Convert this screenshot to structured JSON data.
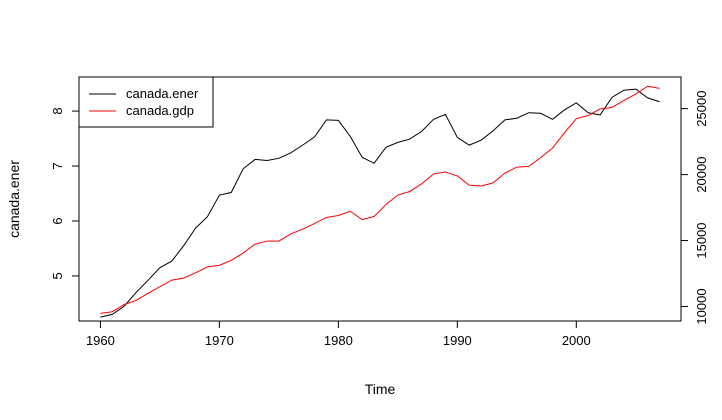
{
  "chart_data": {
    "type": "line",
    "xlabel": "Time",
    "ylabel": "canada.ener",
    "xlim": [
      1958.2,
      2008.8
    ],
    "x_ticks": [
      1960,
      1970,
      1980,
      1990,
      2000
    ],
    "y_left": {
      "lim": [
        4.18,
        8.62
      ],
      "ticks": [
        5,
        6,
        7,
        8
      ]
    },
    "y_right": {
      "lim": [
        8900,
        27400
      ],
      "ticks": [
        10000,
        15000,
        20000,
        25000
      ]
    },
    "legend": {
      "position": "top-left",
      "entries": [
        "canada.ener",
        "canada.gdp"
      ]
    },
    "series": [
      {
        "name": "canada.ener",
        "axis": "left",
        "color": "#000000",
        "x": [
          1960,
          1961,
          1962,
          1963,
          1964,
          1965,
          1966,
          1967,
          1968,
          1969,
          1970,
          1971,
          1972,
          1973,
          1974,
          1975,
          1976,
          1977,
          1978,
          1979,
          1980,
          1981,
          1982,
          1983,
          1984,
          1985,
          1986,
          1987,
          1988,
          1989,
          1990,
          1991,
          1992,
          1993,
          1994,
          1995,
          1996,
          1997,
          1998,
          1999,
          2000,
          2001,
          2002,
          2003,
          2004,
          2005,
          2006,
          2007
        ],
        "values": [
          4.25,
          4.3,
          4.45,
          4.7,
          4.92,
          5.15,
          5.27,
          5.55,
          5.87,
          6.08,
          6.47,
          6.52,
          6.95,
          7.12,
          7.1,
          7.14,
          7.24,
          7.38,
          7.53,
          7.84,
          7.83,
          7.54,
          7.16,
          7.05,
          7.34,
          7.43,
          7.49,
          7.63,
          7.85,
          7.94,
          7.52,
          7.38,
          7.47,
          7.64,
          7.84,
          7.87,
          7.97,
          7.96,
          7.85,
          8.02,
          8.15,
          7.97,
          7.93,
          8.25,
          8.38,
          8.4,
          8.24,
          8.17
        ]
      },
      {
        "name": "canada.gdp",
        "axis": "right",
        "color": "#ff0000",
        "x": [
          1960,
          1961,
          1962,
          1963,
          1964,
          1965,
          1966,
          1967,
          1968,
          1969,
          1970,
          1971,
          1972,
          1973,
          1974,
          1975,
          1976,
          1977,
          1978,
          1979,
          1980,
          1981,
          1982,
          1983,
          1984,
          1985,
          1986,
          1987,
          1988,
          1989,
          1990,
          1991,
          1992,
          1993,
          1994,
          1995,
          1996,
          1997,
          1998,
          1999,
          2000,
          2001,
          2002,
          2003,
          2004,
          2005,
          2006,
          2007
        ],
        "values": [
          9480,
          9600,
          10150,
          10460,
          11000,
          11500,
          12000,
          12150,
          12550,
          13000,
          13120,
          13500,
          14050,
          14730,
          14960,
          14960,
          15500,
          15860,
          16300,
          16750,
          16900,
          17220,
          16590,
          16820,
          17730,
          18450,
          18720,
          19300,
          20050,
          20200,
          19900,
          19200,
          19140,
          19370,
          20110,
          20570,
          20620,
          21290,
          22010,
          23170,
          24240,
          24480,
          24980,
          25090,
          25620,
          26110,
          26700,
          26540
        ]
      }
    ]
  }
}
